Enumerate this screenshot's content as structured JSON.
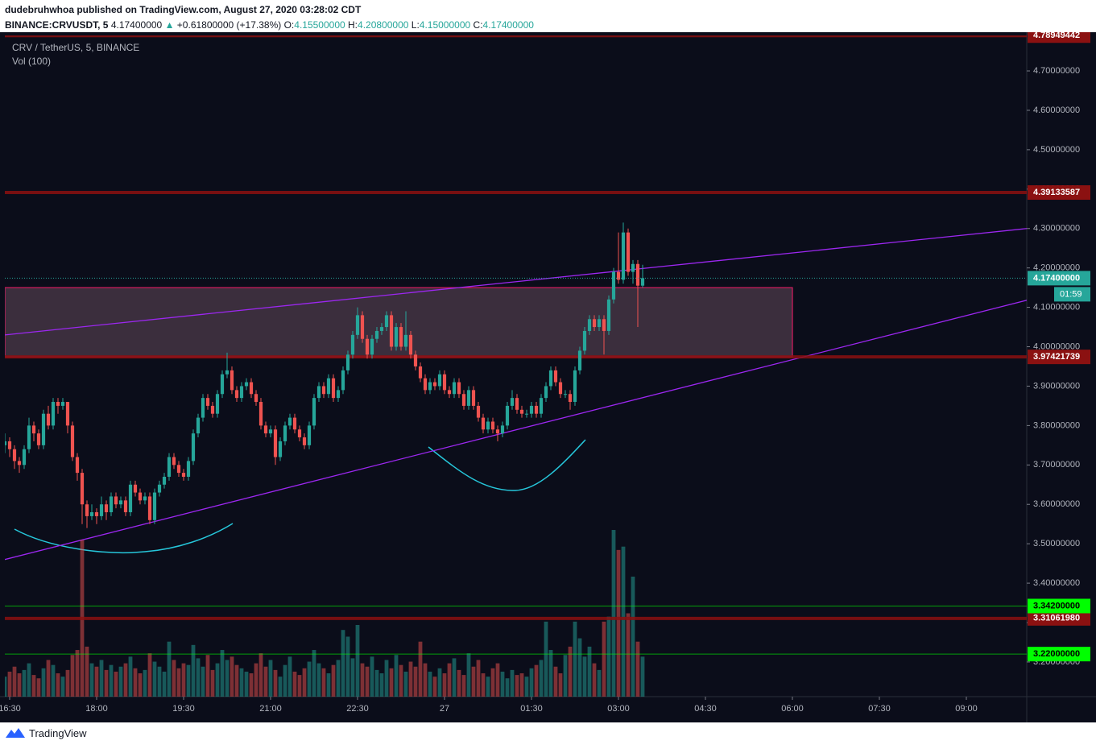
{
  "header": {
    "publisher": "dudebruhwhoa published on TradingView.com, August 27, 2020 03:28:02 CDT",
    "symbol": "BINANCE:CRVUSDT, 5",
    "last": "4.17400000",
    "change": "+0.61800000 (+17.38%)",
    "ohlc": [
      {
        "key": "O:",
        "value": "4.15500000"
      },
      {
        "key": "H:",
        "value": "4.20800000"
      },
      {
        "key": "L:",
        "value": "4.15000000"
      },
      {
        "key": "C:",
        "value": "4.17400000"
      }
    ]
  },
  "legend": {
    "title": "CRV / TetherUS, 5, BINANCE",
    "volume": "Vol (100)"
  },
  "footer": "TradingView",
  "chart_data": {
    "type": "candlestick",
    "up_color": "#26a69a",
    "down_color": "#ef5350",
    "open": [
      3.75,
      3.76,
      3.74,
      3.71,
      3.7,
      3.74,
      3.8,
      3.78,
      3.75,
      3.83,
      3.8,
      3.86,
      3.85,
      3.86,
      3.8,
      3.72,
      3.68,
      3.6,
      3.57,
      3.58,
      3.57,
      3.6,
      3.58,
      3.62,
      3.6,
      3.61,
      3.58,
      3.65,
      3.63,
      3.61,
      3.62,
      3.56,
      3.63,
      3.65,
      3.67,
      3.72,
      3.7,
      3.68,
      3.67,
      3.71,
      3.78,
      3.82,
      3.87,
      3.85,
      3.83,
      3.88,
      3.93,
      3.94,
      3.89,
      3.87,
      3.9,
      3.91,
      3.88,
      3.86,
      3.8,
      3.78,
      3.79,
      3.72,
      3.76,
      3.8,
      3.82,
      3.79,
      3.77,
      3.75,
      3.8,
      3.87,
      3.9,
      3.88,
      3.92,
      3.87,
      3.89,
      3.94,
      3.98,
      4.03,
      4.08,
      4.02,
      3.98,
      4.02,
      4.04,
      4.05,
      4.08,
      4.0,
      4.05,
      4.0,
      4.03,
      3.98,
      3.95,
      3.92,
      3.89,
      3.91,
      3.9,
      3.93,
      3.89,
      3.88,
      3.91,
      3.88,
      3.85,
      3.89,
      3.85,
      3.82,
      3.79,
      3.81,
      3.79,
      3.78,
      3.8,
      3.85,
      3.87,
      3.84,
      3.83,
      3.83,
      3.85,
      3.83,
      3.87,
      3.9,
      3.94,
      3.91,
      3.88,
      3.88,
      3.86,
      3.94,
      3.99,
      4.04,
      4.07,
      4.05,
      4.07,
      4.04,
      4.12,
      4.19,
      4.17,
      4.29,
      4.19,
      4.21,
      4.155
    ],
    "high": [
      3.78,
      3.77,
      3.75,
      3.72,
      3.75,
      3.82,
      3.81,
      3.79,
      3.84,
      3.85,
      3.87,
      3.87,
      3.87,
      3.86,
      3.81,
      3.73,
      3.69,
      3.61,
      3.6,
      3.59,
      3.62,
      3.61,
      3.63,
      3.63,
      3.62,
      3.62,
      3.66,
      3.66,
      3.64,
      3.63,
      3.63,
      3.64,
      3.66,
      3.68,
      3.73,
      3.73,
      3.71,
      3.69,
      3.72,
      3.79,
      3.83,
      3.88,
      3.88,
      3.86,
      3.89,
      3.94,
      3.985,
      3.95,
      3.9,
      3.91,
      3.92,
      3.92,
      3.89,
      3.87,
      3.81,
      3.8,
      3.8,
      3.77,
      3.81,
      3.83,
      3.83,
      3.8,
      3.78,
      3.81,
      3.88,
      3.91,
      3.91,
      3.93,
      3.93,
      3.9,
      3.95,
      3.99,
      4.04,
      4.1,
      4.09,
      4.03,
      4.03,
      4.05,
      4.06,
      4.09,
      4.09,
      4.06,
      4.06,
      4.09,
      4.04,
      3.99,
      3.96,
      3.93,
      3.92,
      3.92,
      3.94,
      3.94,
      3.9,
      3.92,
      3.92,
      3.89,
      3.9,
      3.9,
      3.86,
      3.83,
      3.82,
      3.82,
      3.8,
      3.81,
      3.86,
      3.89,
      3.88,
      3.85,
      3.84,
      3.86,
      3.86,
      3.88,
      3.91,
      3.95,
      3.95,
      3.92,
      3.89,
      3.89,
      3.95,
      4.0,
      4.05,
      4.08,
      4.08,
      4.08,
      4.08,
      4.13,
      4.2,
      4.29,
      4.315,
      4.3,
      4.22,
      4.22,
      4.208
    ],
    "low": [
      3.73,
      3.72,
      3.69,
      3.68,
      3.69,
      3.73,
      3.76,
      3.74,
      3.74,
      3.79,
      3.79,
      3.83,
      3.84,
      3.78,
      3.71,
      3.66,
      3.55,
      3.54,
      3.56,
      3.55,
      3.56,
      3.56,
      3.57,
      3.59,
      3.59,
      3.57,
      3.57,
      3.62,
      3.6,
      3.6,
      3.55,
      3.55,
      3.62,
      3.64,
      3.66,
      3.69,
      3.67,
      3.66,
      3.66,
      3.7,
      3.77,
      3.81,
      3.84,
      3.82,
      3.82,
      3.87,
      3.92,
      3.88,
      3.86,
      3.86,
      3.89,
      3.87,
      3.85,
      3.79,
      3.77,
      3.77,
      3.7,
      3.71,
      3.75,
      3.79,
      3.78,
      3.76,
      3.74,
      3.74,
      3.79,
      3.86,
      3.87,
      3.87,
      3.86,
      3.86,
      3.88,
      3.93,
      3.97,
      4.02,
      4.01,
      3.97,
      3.97,
      4.01,
      4.03,
      4.04,
      3.99,
      3.99,
      3.99,
      3.99,
      3.97,
      3.94,
      3.91,
      3.88,
      3.88,
      3.89,
      3.89,
      3.88,
      3.87,
      3.87,
      3.87,
      3.84,
      3.84,
      3.84,
      3.81,
      3.78,
      3.78,
      3.78,
      3.76,
      3.77,
      3.79,
      3.84,
      3.83,
      3.82,
      3.82,
      3.82,
      3.82,
      3.82,
      3.86,
      3.89,
      3.9,
      3.87,
      3.87,
      3.84,
      3.85,
      3.93,
      3.98,
      4.03,
      4.04,
      4.04,
      3.98,
      4.03,
      4.11,
      4.16,
      4.16,
      4.18,
      4.16,
      4.05,
      4.15
    ],
    "close": [
      3.76,
      3.74,
      3.71,
      3.7,
      3.74,
      3.8,
      3.78,
      3.75,
      3.83,
      3.8,
      3.86,
      3.85,
      3.86,
      3.8,
      3.72,
      3.68,
      3.6,
      3.57,
      3.58,
      3.57,
      3.6,
      3.58,
      3.62,
      3.6,
      3.61,
      3.58,
      3.65,
      3.63,
      3.61,
      3.62,
      3.56,
      3.63,
      3.65,
      3.67,
      3.72,
      3.7,
      3.68,
      3.67,
      3.71,
      3.78,
      3.82,
      3.87,
      3.85,
      3.83,
      3.88,
      3.93,
      3.94,
      3.89,
      3.87,
      3.9,
      3.91,
      3.88,
      3.86,
      3.8,
      3.78,
      3.79,
      3.72,
      3.76,
      3.8,
      3.82,
      3.79,
      3.77,
      3.75,
      3.8,
      3.87,
      3.9,
      3.88,
      3.92,
      3.87,
      3.89,
      3.94,
      3.98,
      4.03,
      4.08,
      4.02,
      3.98,
      4.02,
      4.04,
      4.05,
      4.08,
      4.0,
      4.05,
      4.0,
      4.03,
      3.98,
      3.95,
      3.92,
      3.89,
      3.91,
      3.9,
      3.93,
      3.89,
      3.88,
      3.91,
      3.88,
      3.85,
      3.89,
      3.85,
      3.82,
      3.79,
      3.81,
      3.79,
      3.78,
      3.8,
      3.85,
      3.87,
      3.84,
      3.83,
      3.83,
      3.85,
      3.83,
      3.87,
      3.9,
      3.94,
      3.91,
      3.88,
      3.88,
      3.86,
      3.94,
      3.99,
      4.04,
      4.07,
      4.05,
      4.07,
      4.04,
      4.12,
      4.19,
      4.17,
      4.29,
      4.19,
      4.21,
      4.155,
      4.174
    ],
    "volume": [
      12,
      15,
      18,
      14,
      16,
      20,
      13,
      11,
      17,
      22,
      19,
      14,
      12,
      16,
      25,
      28,
      94,
      30,
      20,
      18,
      22,
      16,
      19,
      15,
      18,
      20,
      24,
      17,
      14,
      16,
      26,
      21,
      18,
      15,
      33,
      22,
      17,
      20,
      19,
      31,
      23,
      18,
      25,
      16,
      20,
      28,
      22,
      24,
      19,
      17,
      15,
      14,
      20,
      26,
      18,
      22,
      16,
      12,
      19,
      24,
      15,
      13,
      17,
      21,
      28,
      20,
      17,
      14,
      19,
      22,
      40,
      36,
      23,
      43,
      20,
      18,
      24,
      16,
      14,
      22,
      17,
      25,
      19,
      15,
      21,
      18,
      33,
      20,
      15,
      12,
      17,
      14,
      20,
      23,
      16,
      13,
      26,
      18,
      22,
      14,
      12,
      17,
      20,
      15,
      11,
      16,
      13,
      14,
      12,
      17,
      19,
      22,
      45,
      28,
      18,
      14,
      25,
      30,
      45,
      35,
      24,
      30,
      20,
      16,
      45,
      48,
      100,
      88,
      90,
      50,
      72,
      33,
      24
    ],
    "vlim": [
      0,
      100
    ],
    "xlim": [
      0,
      211.5
    ],
    "xticks": [
      {
        "value": 1,
        "label": "16:30"
      },
      {
        "value": 19,
        "label": "18:00"
      },
      {
        "value": 37,
        "label": "19:30"
      },
      {
        "value": 55,
        "label": "21:00"
      },
      {
        "value": 73,
        "label": "22:30"
      },
      {
        "value": 91,
        "label": "27"
      },
      {
        "value": 109,
        "label": "01:30"
      },
      {
        "value": 127,
        "label": "03:00"
      },
      {
        "value": 145,
        "label": "04:30"
      },
      {
        "value": 163,
        "label": "06:00"
      },
      {
        "value": 181,
        "label": "07:30"
      },
      {
        "value": 199,
        "label": "09:00"
      }
    ],
    "ylim": [
      3.112,
      4.79
    ],
    "yticks": [
      {
        "value": 3.2,
        "label": "3.20000000"
      },
      {
        "value": 3.3,
        "label": "3.30000000"
      },
      {
        "value": 3.4,
        "label": "3.40000000"
      },
      {
        "value": 3.5,
        "label": "3.50000000"
      },
      {
        "value": 3.6,
        "label": "3.60000000"
      },
      {
        "value": 3.7,
        "label": "3.70000000"
      },
      {
        "value": 3.8,
        "label": "3.80000000"
      },
      {
        "value": 3.9,
        "label": "3.90000000"
      },
      {
        "value": 4.0,
        "label": "4.00000000"
      },
      {
        "value": 4.1,
        "label": "4.10000000"
      },
      {
        "value": 4.2,
        "label": "4.20000000"
      },
      {
        "value": 4.3,
        "label": "4.30000000"
      },
      {
        "value": 4.4,
        "label": "4.40000000"
      },
      {
        "value": 4.5,
        "label": "4.50000000"
      },
      {
        "value": 4.6,
        "label": "4.60000000"
      },
      {
        "value": 4.7,
        "label": "4.70000000"
      }
    ],
    "levels": [
      {
        "value": 4.78949442,
        "label": "4.78949442",
        "color": "#8b1111"
      },
      {
        "value": 4.39133587,
        "label": "4.39133587",
        "color": "#8b1111"
      },
      {
        "value": 3.97421739,
        "label": "3.97421739",
        "color": "#8b1111"
      },
      {
        "value": 3.3106198,
        "label": "3.31061980",
        "color": "#8b1111"
      },
      {
        "value": 3.342,
        "label": "3.34200000",
        "color": "#00ff00"
      },
      {
        "value": 3.22,
        "label": "3.22000000",
        "color": "#00ff00"
      }
    ],
    "current": {
      "value": 4.174,
      "label": "4.17400000",
      "countdown": "01:59",
      "color": "#26a69a"
    },
    "zone": {
      "x": [
        0,
        163
      ],
      "y": [
        3.97421739,
        4.15
      ]
    },
    "trendlines": [
      {
        "from": [
          0,
          4.03
        ],
        "to": [
          211.5,
          4.3
        ]
      },
      {
        "from": [
          0,
          3.46
        ],
        "to": [
          211.5,
          4.118
        ]
      }
    ]
  }
}
